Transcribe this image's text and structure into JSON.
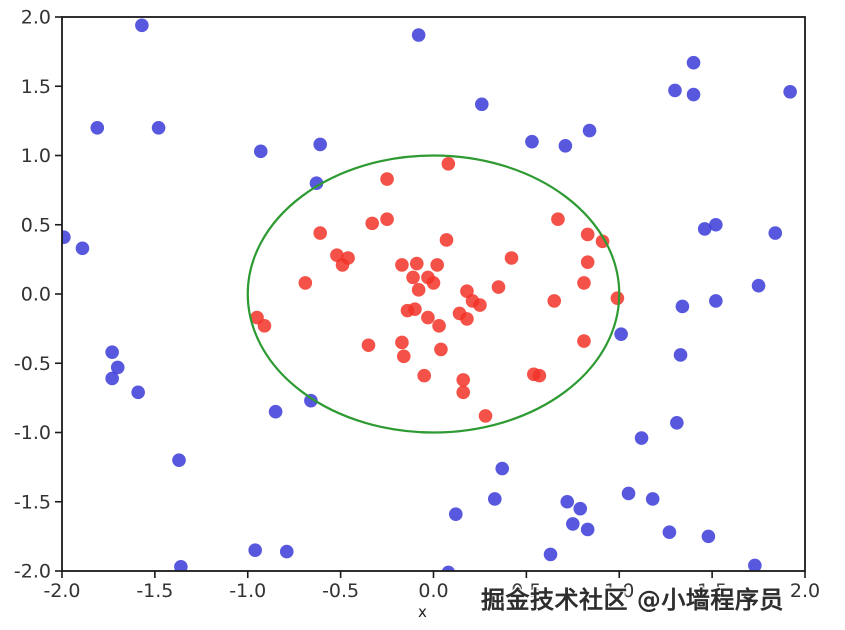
{
  "figure": {
    "xlabel": "x",
    "watermark": "掘金技术社区 @小墙程序员",
    "background_color": "#ffffff",
    "spine_color": "#1a1a1a",
    "tick_label_color": "#333333"
  },
  "chart_data": {
    "type": "scatter",
    "title": "",
    "xlabel": "x",
    "ylabel": "",
    "xlim": [
      -2.0,
      2.0
    ],
    "ylim": [
      -2.0,
      2.0
    ],
    "x_ticks": [
      "-2.0",
      "-1.5",
      "-1.0",
      "-0.5",
      "0.0",
      "0.5",
      "1.0",
      "1.5",
      "2.0"
    ],
    "y_ticks": [
      "-2.0",
      "-1.5",
      "-1.0",
      "-0.5",
      "0.0",
      "0.5",
      "1.0",
      "1.5",
      "2.0"
    ],
    "grid": false,
    "legend": null,
    "marker_radius_px": 6.8,
    "series": [
      {
        "name": "inside-circle-points",
        "color": "#f23328",
        "opacity": 0.85,
        "points": [
          [
            0.08,
            0.94
          ],
          [
            -0.25,
            0.83
          ],
          [
            -0.61,
            0.44
          ],
          [
            -0.33,
            0.51
          ],
          [
            -0.25,
            0.54
          ],
          [
            0.07,
            0.39
          ],
          [
            0.42,
            0.26
          ],
          [
            0.67,
            0.54
          ],
          [
            0.83,
            0.43
          ],
          [
            0.91,
            0.38
          ],
          [
            -0.52,
            0.28
          ],
          [
            -0.46,
            0.26
          ],
          [
            -0.49,
            0.21
          ],
          [
            -0.69,
            0.08
          ],
          [
            -0.17,
            0.21
          ],
          [
            -0.09,
            0.22
          ],
          [
            0.02,
            0.21
          ],
          [
            -0.11,
            0.12
          ],
          [
            -0.03,
            0.12
          ],
          [
            0.0,
            0.08
          ],
          [
            -0.08,
            0.03
          ],
          [
            0.35,
            0.05
          ],
          [
            0.18,
            0.02
          ],
          [
            0.83,
            0.23
          ],
          [
            0.81,
            0.08
          ],
          [
            0.99,
            -0.03
          ],
          [
            0.65,
            -0.05
          ],
          [
            -0.14,
            -0.12
          ],
          [
            -0.1,
            -0.11
          ],
          [
            -0.03,
            -0.17
          ],
          [
            0.03,
            -0.23
          ],
          [
            0.14,
            -0.14
          ],
          [
            0.18,
            -0.18
          ],
          [
            -0.95,
            -0.17
          ],
          [
            -0.91,
            -0.23
          ],
          [
            -0.35,
            -0.37
          ],
          [
            -0.17,
            -0.35
          ],
          [
            -0.16,
            -0.45
          ],
          [
            0.04,
            -0.4
          ],
          [
            -0.05,
            -0.59
          ],
          [
            0.16,
            -0.62
          ],
          [
            0.16,
            -0.71
          ],
          [
            0.54,
            -0.58
          ],
          [
            0.57,
            -0.59
          ],
          [
            0.28,
            -0.88
          ],
          [
            0.81,
            -0.34
          ],
          [
            0.21,
            -0.05
          ],
          [
            0.25,
            -0.08
          ]
        ]
      },
      {
        "name": "outside-circle-points",
        "color": "#3b3bd8",
        "opacity": 0.85,
        "points": [
          [
            -1.57,
            1.94
          ],
          [
            -0.08,
            1.87
          ],
          [
            -1.81,
            1.2
          ],
          [
            -1.48,
            1.2
          ],
          [
            -0.93,
            1.03
          ],
          [
            -0.61,
            1.08
          ],
          [
            -0.63,
            0.8
          ],
          [
            -1.99,
            0.41
          ],
          [
            -1.89,
            0.33
          ],
          [
            1.4,
            1.67
          ],
          [
            1.3,
            1.47
          ],
          [
            1.4,
            1.44
          ],
          [
            1.92,
            1.46
          ],
          [
            0.26,
            1.37
          ],
          [
            0.53,
            1.1
          ],
          [
            0.71,
            1.07
          ],
          [
            0.84,
            1.18
          ],
          [
            1.46,
            0.47
          ],
          [
            1.52,
            0.5
          ],
          [
            1.84,
            0.44
          ],
          [
            1.75,
            0.06
          ],
          [
            1.52,
            -0.05
          ],
          [
            1.34,
            -0.09
          ],
          [
            1.01,
            -0.29
          ],
          [
            1.33,
            -0.44
          ],
          [
            -1.73,
            -0.42
          ],
          [
            -1.7,
            -0.53
          ],
          [
            -1.73,
            -0.61
          ],
          [
            -1.59,
            -0.71
          ],
          [
            -0.66,
            -0.77
          ],
          [
            -0.85,
            -0.85
          ],
          [
            -1.37,
            -1.2
          ],
          [
            1.31,
            -0.93
          ],
          [
            1.12,
            -1.04
          ],
          [
            0.37,
            -1.26
          ],
          [
            0.33,
            -1.48
          ],
          [
            0.12,
            -1.59
          ],
          [
            0.72,
            -1.5
          ],
          [
            0.79,
            -1.55
          ],
          [
            0.75,
            -1.66
          ],
          [
            0.83,
            -1.7
          ],
          [
            1.05,
            -1.44
          ],
          [
            1.18,
            -1.48
          ],
          [
            1.27,
            -1.72
          ],
          [
            1.48,
            -1.75
          ],
          [
            0.63,
            -1.88
          ],
          [
            -0.96,
            -1.85
          ],
          [
            -0.79,
            -1.86
          ],
          [
            -1.36,
            -1.97
          ],
          [
            1.73,
            -1.96
          ],
          [
            0.08,
            -2.01
          ]
        ]
      }
    ],
    "overlay_shape": {
      "type": "circle",
      "cx": 0.0,
      "cy": 0.0,
      "r": 1.0,
      "stroke": "#2e9a32",
      "stroke_width_px": 2.2
    }
  }
}
